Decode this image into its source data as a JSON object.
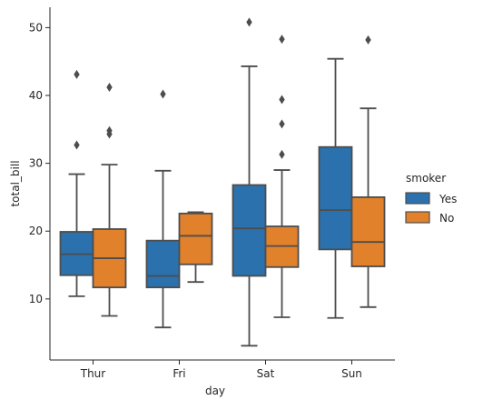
{
  "chart_data": {
    "type": "boxplot",
    "xlabel": "day",
    "ylabel": "total_bill",
    "categories": [
      "Thur",
      "Fri",
      "Sat",
      "Sun"
    ],
    "ylim": [
      1.0,
      53.0
    ],
    "yticks": [
      10,
      20,
      30,
      40,
      50
    ],
    "grid": false,
    "legend": {
      "title": "smoker",
      "placement": "right"
    },
    "series": [
      {
        "name": "Yes",
        "color": "#2a71ad",
        "boxes": [
          {
            "q1": 13.5,
            "median": 16.6,
            "q3": 19.9,
            "whisker_low": 10.4,
            "whisker_high": 28.4,
            "outliers": [
              43.1,
              32.7
            ]
          },
          {
            "q1": 11.7,
            "median": 13.4,
            "q3": 18.6,
            "whisker_low": 5.8,
            "whisker_high": 28.9,
            "outliers": [
              40.2
            ]
          },
          {
            "q1": 13.4,
            "median": 20.4,
            "q3": 26.8,
            "whisker_low": 3.1,
            "whisker_high": 44.3,
            "outliers": [
              50.8
            ]
          },
          {
            "q1": 17.3,
            "median": 23.1,
            "q3": 32.4,
            "whisker_low": 7.2,
            "whisker_high": 45.4,
            "outliers": []
          }
        ]
      },
      {
        "name": "No",
        "color": "#e1812c",
        "boxes": [
          {
            "q1": 11.7,
            "median": 16.0,
            "q3": 20.3,
            "whisker_low": 7.5,
            "whisker_high": 29.8,
            "outliers": [
              41.2,
              34.8,
              34.3
            ]
          },
          {
            "q1": 15.1,
            "median": 19.3,
            "q3": 22.6,
            "whisker_low": 12.5,
            "whisker_high": 22.8,
            "outliers": []
          },
          {
            "q1": 14.7,
            "median": 17.8,
            "q3": 20.7,
            "whisker_low": 7.3,
            "whisker_high": 29.0,
            "outliers": [
              48.3,
              39.4,
              35.8,
              31.3
            ]
          },
          {
            "q1": 14.8,
            "median": 18.4,
            "q3": 25.0,
            "whisker_low": 8.8,
            "whisker_high": 38.1,
            "outliers": [
              48.2
            ]
          }
        ]
      }
    ]
  }
}
